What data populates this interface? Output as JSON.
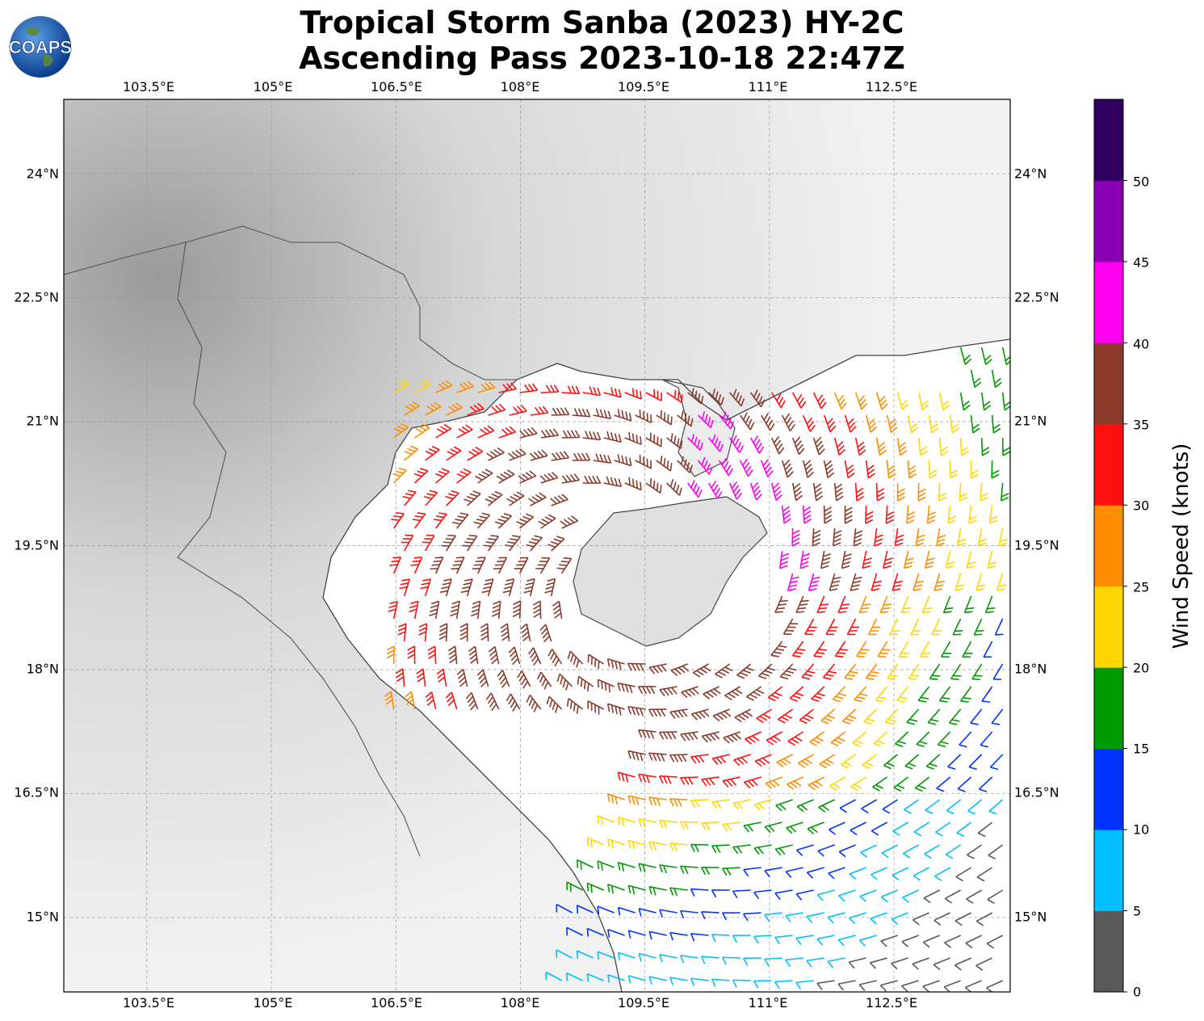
{
  "title": {
    "line1": "Tropical Storm Sanba (2023) HY-2C",
    "line2": "Ascending Pass 2023-10-18 22:47Z"
  },
  "logo": {
    "text": "COAPS",
    "icon": "globe-icon"
  },
  "map": {
    "lon_range": [
      102.5,
      113.9
    ],
    "lat_range": [
      14.1,
      24.9
    ],
    "lon_ticks": [
      "103.5°E",
      "105°E",
      "106.5°E",
      "108°E",
      "109.5°E",
      "111°E",
      "112.5°E"
    ],
    "lat_ticks": [
      "24°N",
      "22.5°N",
      "21°N",
      "19.5°N",
      "18°N",
      "16.5°N",
      "15°N"
    ],
    "grid": true,
    "background": "grayscale topography"
  },
  "colorbar": {
    "label": "Wind Speed (knots)",
    "ticks": [
      "0",
      "5",
      "10",
      "15",
      "20",
      "25",
      "30",
      "35",
      "40",
      "45",
      "50"
    ],
    "colors": [
      "#595959",
      "#00bfff",
      "#0033ff",
      "#009900",
      "#ffd700",
      "#ff8c00",
      "#ff0f0f",
      "#8b3a2b",
      "#ff00ee",
      "#8800b4",
      "#2f0060"
    ]
  },
  "storm_center": {
    "lon": 109.2,
    "lat": 19.0
  }
}
